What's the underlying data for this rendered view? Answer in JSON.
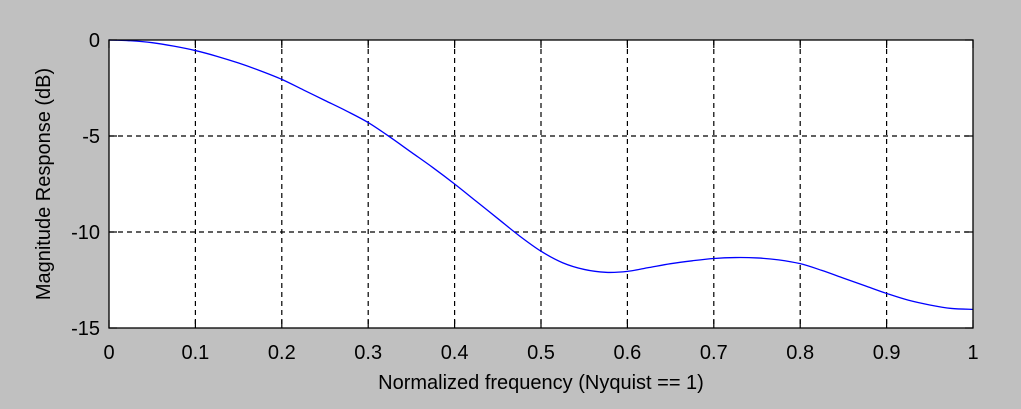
{
  "chart_data": {
    "type": "line",
    "title": "",
    "xlabel": "Normalized frequency (Nyquist == 1)",
    "ylabel": "Magnitude Response (dB)",
    "xlim": [
      0,
      1
    ],
    "ylim": [
      -15,
      0
    ],
    "x_ticks": [
      0,
      0.1,
      0.2,
      0.3,
      0.4,
      0.5,
      0.6,
      0.7,
      0.8,
      0.9,
      1
    ],
    "x_tick_labels": [
      "0",
      "0.1",
      "0.2",
      "0.3",
      "0.4",
      "0.5",
      "0.6",
      "0.7",
      "0.8",
      "0.9",
      "1"
    ],
    "y_ticks": [
      0,
      -5,
      -10,
      -15
    ],
    "y_tick_labels": [
      "0",
      "-5",
      "-10",
      "-15"
    ],
    "grid": true,
    "grid_style": "dashed",
    "background_color": "#c0c0c0",
    "axes_color": "#ffffff",
    "series": [
      {
        "color": "#0000ff",
        "x": [
          0,
          0.025,
          0.05,
          0.075,
          0.1,
          0.125,
          0.15,
          0.175,
          0.2,
          0.225,
          0.25,
          0.275,
          0.3,
          0.325,
          0.35,
          0.375,
          0.4,
          0.425,
          0.45,
          0.475,
          0.5,
          0.525,
          0.55,
          0.575,
          0.6,
          0.625,
          0.65,
          0.675,
          0.7,
          0.725,
          0.75,
          0.775,
          0.8,
          0.825,
          0.85,
          0.875,
          0.9,
          0.925,
          0.95,
          0.975,
          1
        ],
        "y": [
          0,
          -0.04,
          -0.14,
          -0.32,
          -0.55,
          -0.85,
          -1.2,
          -1.6,
          -2.05,
          -2.6,
          -3.15,
          -3.7,
          -4.3,
          -5.05,
          -5.85,
          -6.65,
          -7.5,
          -8.4,
          -9.3,
          -10.2,
          -11.0,
          -11.6,
          -11.95,
          -12.1,
          -12.05,
          -11.85,
          -11.65,
          -11.5,
          -11.38,
          -11.33,
          -11.35,
          -11.45,
          -11.65,
          -12.0,
          -12.4,
          -12.8,
          -13.2,
          -13.55,
          -13.8,
          -13.98,
          -14.03
        ]
      }
    ]
  }
}
